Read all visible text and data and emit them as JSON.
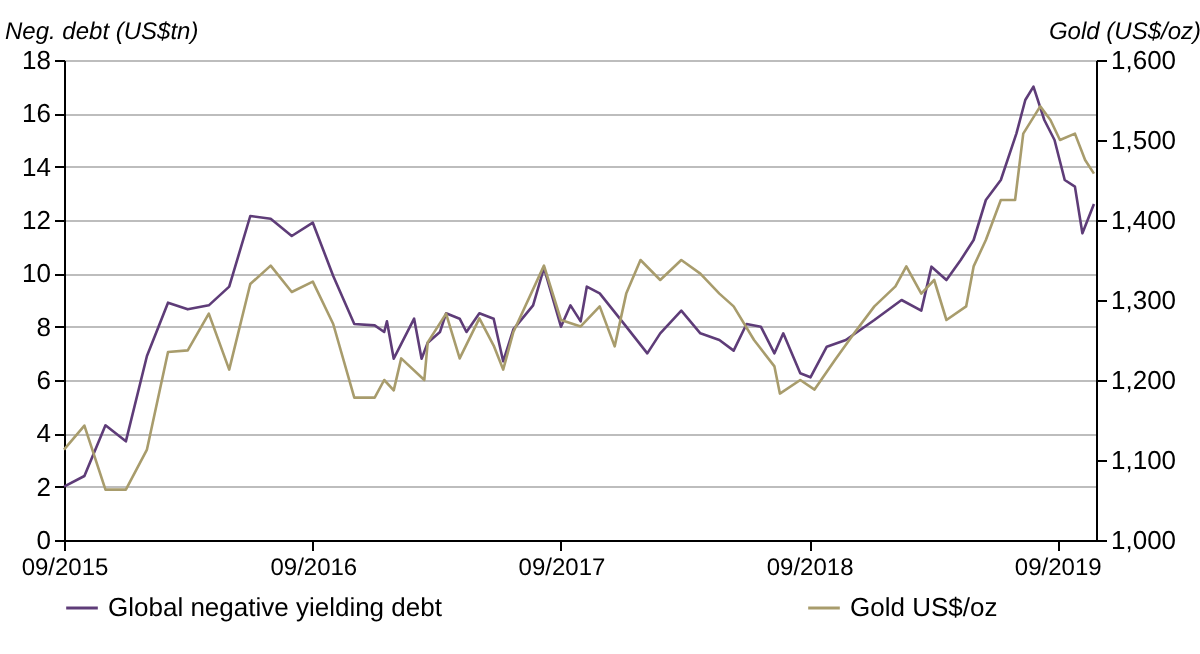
{
  "chart_data": {
    "type": "line",
    "ylabel": "Neg. debt (US$tn)",
    "y2label": "Gold (US$/oz)",
    "xlim": [
      "2015-09-01",
      "2019-10-28"
    ],
    "xticks": [
      {
        "value": "2015-09-01",
        "label": "09/2015"
      },
      {
        "value": "2016-09-01",
        "label": "09/2016"
      },
      {
        "value": "2017-09-01",
        "label": "09/2017"
      },
      {
        "value": "2018-09-01",
        "label": "09/2018"
      },
      {
        "value": "2019-09-01",
        "label": "09/2019"
      }
    ],
    "ylim": [
      0,
      18
    ],
    "yticks": [
      0,
      2,
      4,
      6,
      8,
      10,
      12,
      14,
      16,
      18
    ],
    "y2lim": [
      1000,
      1600
    ],
    "y2ticks": [
      {
        "value": 1000,
        "label": "1,000"
      },
      {
        "value": 1100,
        "label": "1,100"
      },
      {
        "value": 1200,
        "label": "1,200"
      },
      {
        "value": 1300,
        "label": "1,300"
      },
      {
        "value": 1400,
        "label": "1,400"
      },
      {
        "value": 1500,
        "label": "1,500"
      },
      {
        "value": 1600,
        "label": "1,600"
      }
    ],
    "grid": "y",
    "legend": "bottom",
    "series": [
      {
        "name": "Global negative yielding debt",
        "color": "#5e3c78",
        "x": [
          "2015-09-01",
          "2015-10-01",
          "2015-11-01",
          "2015-12-01",
          "2016-01-01",
          "2016-02-01",
          "2016-03-01",
          "2016-04-01",
          "2016-05-01",
          "2016-06-01",
          "2016-07-01",
          "2016-08-01",
          "2016-09-01",
          "2016-10-01",
          "2016-11-01",
          "2016-12-01",
          "2016-12-15",
          "2016-12-19",
          "2016-12-29",
          "2017-01-28",
          "2017-02-08",
          "2017-02-17",
          "2017-03-07",
          "2017-03-16",
          "2017-04-05",
          "2017-04-15",
          "2017-05-04",
          "2017-05-25",
          "2017-06-08",
          "2017-06-23",
          "2017-07-22",
          "2017-08-07",
          "2017-09-01",
          "2017-09-15",
          "2017-09-30",
          "2017-10-09",
          "2017-10-28",
          "2017-12-06",
          "2018-01-06",
          "2018-01-25",
          "2018-02-25",
          "2018-03-25",
          "2018-04-22",
          "2018-05-13",
          "2018-06-01",
          "2018-06-22",
          "2018-07-12",
          "2018-07-25",
          "2018-08-19",
          "2018-09-03",
          "2018-09-27",
          "2018-10-25",
          "2018-12-06",
          "2019-01-15",
          "2019-02-13",
          "2019-02-28",
          "2019-03-22",
          "2019-04-12",
          "2019-05-01",
          "2019-05-19",
          "2019-06-10",
          "2019-07-03",
          "2019-07-16",
          "2019-07-28",
          "2019-08-13",
          "2019-08-28",
          "2019-09-12",
          "2019-09-27",
          "2019-10-08",
          "2019-10-25"
        ],
        "values": [
          2.0,
          2.4,
          4.3,
          3.7,
          6.9,
          8.9,
          8.65,
          8.8,
          9.5,
          12.15,
          12.05,
          11.4,
          11.9,
          9.9,
          8.1,
          8.05,
          7.8,
          8.2,
          6.8,
          8.3,
          6.8,
          7.4,
          7.8,
          8.5,
          8.3,
          7.8,
          8.5,
          8.3,
          6.7,
          7.9,
          8.8,
          10.2,
          8.0,
          8.8,
          8.2,
          9.5,
          9.25,
          8.0,
          7.0,
          7.75,
          8.6,
          7.75,
          7.5,
          7.1,
          8.1,
          8.0,
          7.0,
          7.75,
          6.25,
          6.1,
          7.25,
          7.5,
          8.25,
          9.0,
          8.6,
          10.25,
          9.75,
          10.5,
          11.25,
          12.75,
          13.5,
          15.25,
          16.5,
          17.0,
          15.75,
          15.0,
          13.5,
          13.25,
          11.5,
          12.6
        ]
      },
      {
        "name": "Gold US$/oz",
        "color": "#a89c6c",
        "axis": "y2",
        "x": [
          "2015-09-01",
          "2015-10-01",
          "2015-11-01",
          "2015-12-01",
          "2016-01-01",
          "2016-02-01",
          "2016-03-01",
          "2016-04-01",
          "2016-05-01",
          "2016-06-01",
          "2016-07-01",
          "2016-08-01",
          "2016-09-01",
          "2016-10-01",
          "2016-11-01",
          "2016-12-01",
          "2016-12-15",
          "2016-12-29",
          "2017-01-09",
          "2017-02-12",
          "2017-02-17",
          "2017-03-16",
          "2017-04-05",
          "2017-05-04",
          "2017-05-25",
          "2017-06-08",
          "2017-06-23",
          "2017-08-07",
          "2017-09-01",
          "2017-09-30",
          "2017-10-28",
          "2017-11-19",
          "2017-12-06",
          "2017-12-27",
          "2018-01-25",
          "2018-02-25",
          "2018-03-25",
          "2018-04-22",
          "2018-05-13",
          "2018-06-12",
          "2018-07-12",
          "2018-07-20",
          "2018-08-19",
          "2018-09-09",
          "2018-10-09",
          "2018-11-06",
          "2018-12-06",
          "2019-01-06",
          "2019-01-22",
          "2019-02-13",
          "2019-03-04",
          "2019-03-22",
          "2019-04-20",
          "2019-05-01",
          "2019-05-19",
          "2019-06-10",
          "2019-07-01",
          "2019-07-13",
          "2019-08-07",
          "2019-08-22",
          "2019-09-05",
          "2019-09-27",
          "2019-10-12",
          "2019-10-25"
        ],
        "values": [
          1113,
          1143,
          1063,
          1063,
          1113,
          1235,
          1237,
          1283,
          1213,
          1320,
          1343,
          1310,
          1323,
          1270,
          1178,
          1178,
          1200,
          1187,
          1227,
          1200,
          1247,
          1283,
          1227,
          1277,
          1243,
          1213,
          1260,
          1343,
          1275,
          1267,
          1292,
          1242,
          1308,
          1350,
          1325,
          1350,
          1333,
          1308,
          1292,
          1250,
          1217,
          1183,
          1200,
          1188,
          1225,
          1258,
          1292,
          1317,
          1342,
          1308,
          1325,
          1275,
          1292,
          1342,
          1375,
          1425,
          1425,
          1508,
          1542,
          1525,
          1500,
          1508,
          1475,
          1458
        ]
      }
    ]
  }
}
